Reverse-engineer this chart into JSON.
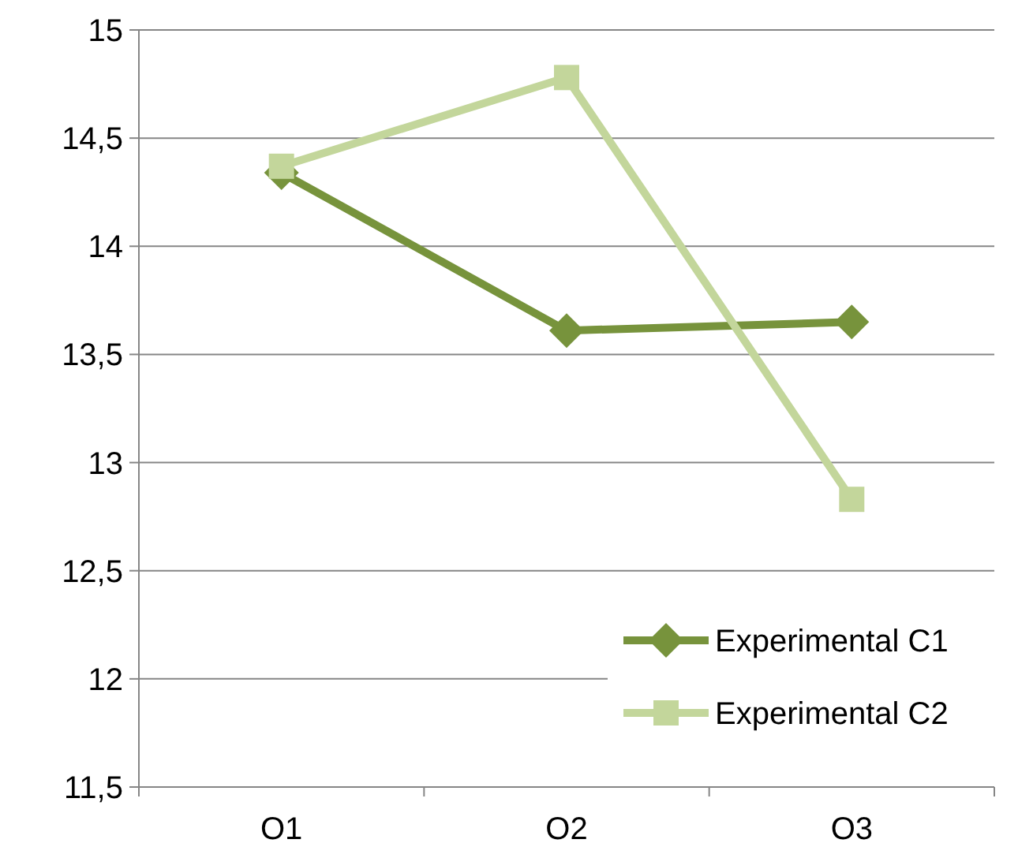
{
  "chart_data": {
    "type": "line",
    "categories": [
      "O1",
      "O2",
      "O3"
    ],
    "series": [
      {
        "name": "Experimental C1",
        "color": "#77933c",
        "values": [
          14.34,
          13.61,
          13.65
        ],
        "marker": "diamond"
      },
      {
        "name": "Experimental C2",
        "color": "#c3d69b",
        "values": [
          14.37,
          14.78,
          12.83
        ],
        "marker": "square"
      }
    ],
    "ylim": [
      11.5,
      15
    ],
    "yticks": [
      {
        "value": 11.5,
        "label": "11,5"
      },
      12,
      {
        "value": 12.5,
        "label": "12,5"
      },
      13,
      {
        "value": 13.5,
        "label": "13,5"
      },
      14,
      {
        "value": 14.5,
        "label": "14,5"
      },
      15
    ],
    "grid": "y",
    "legend": "bottom right",
    "line_style": "solid"
  }
}
